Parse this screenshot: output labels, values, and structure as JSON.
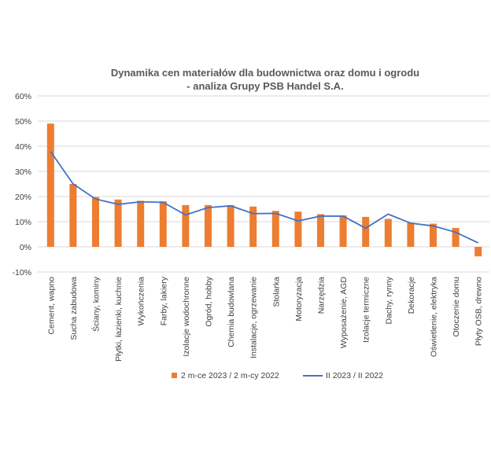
{
  "chart_data": {
    "type": "bar",
    "title": "Dynamika cen materiałów dla budownictwa oraz domu i ogrodu",
    "subtitle": "- analiza Grupy PSB Handel S.A.",
    "xlabel": "",
    "ylabel": "",
    "ylim": [
      -10,
      60
    ],
    "yticks": [
      "60%",
      "50%",
      "40%",
      "30%",
      "20%",
      "10%",
      "0%",
      "-10%"
    ],
    "ytick_values": [
      60,
      50,
      40,
      30,
      20,
      10,
      0,
      -10
    ],
    "grid": true,
    "legend_position": "bottom",
    "categories": [
      "Cement, wapno",
      "Sucha zabudowa",
      "Ściany, kominy",
      "Płytki, łazienki, kuchnie",
      "Wykończenia",
      "Farby, lakiery",
      "Izolacje wodochronne",
      "Ogród, hobby",
      "Chemia budowlana",
      "Instalacje, ogrzewanie",
      "Stolarka",
      "Motoryzacja",
      "Narzędzia",
      "Wyposażenie, AGD",
      "Izolacje termiczne",
      "Dachy, rynny",
      "Dekoracje",
      "Oświetlenie, elektryka",
      "Otoczenie domu",
      "Płyty OSB, drewno"
    ],
    "series": [
      {
        "name": "2 m-ce 2023 / 2 m-cy 2022",
        "type": "bar",
        "color": "#ED7D31",
        "values": [
          49.0,
          25.0,
          19.8,
          18.8,
          18.3,
          18.1,
          16.6,
          16.6,
          16.6,
          16.0,
          14.3,
          14.0,
          13.0,
          12.5,
          11.9,
          11.1,
          9.6,
          9.2,
          7.5,
          -3.8
        ]
      },
      {
        "name": "II 2023 / II 2022",
        "type": "line",
        "color": "#4472C4",
        "values": [
          37.9,
          25.0,
          19.0,
          16.9,
          17.9,
          17.7,
          12.7,
          15.6,
          16.3,
          13.2,
          13.3,
          10.3,
          12.2,
          12.2,
          7.4,
          13.0,
          9.4,
          8.3,
          5.8,
          1.6
        ]
      }
    ]
  }
}
